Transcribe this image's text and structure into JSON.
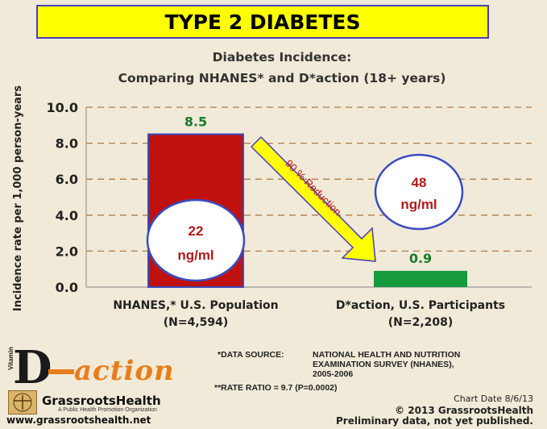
{
  "banner": {
    "title": "TYPE 2 DIABETES"
  },
  "colors": {
    "bar_nhanes": "#c0110f",
    "bar_daction": "#159a3c",
    "arrow": "#ffff00",
    "value_label": "#1a7a2a",
    "ngml_text": "#b11a1a"
  },
  "chart_data": {
    "type": "bar",
    "title_line1": "Diabetes Incidence:",
    "title_line2": "Comparing NHANES* and D*action (18+ years)",
    "ylabel": "Incidence rate per 1,000 person-years",
    "ylim": [
      0,
      10
    ],
    "yticks": [
      "0.0",
      "2.0",
      "4.0",
      "6.0",
      "8.0",
      "10.0"
    ],
    "categories": [
      {
        "line1": "NHANES,* U.S. Population",
        "line2": "(N=4,594)"
      },
      {
        "line1": "D*action, U.S. Participants",
        "line2": "(N=2,208)"
      }
    ],
    "values": [
      8.5,
      0.9
    ],
    "value_labels": [
      "8.5",
      "0.9"
    ],
    "annotations": {
      "nhanes_level": {
        "value": "22",
        "unit": "ng/ml"
      },
      "daction_level": {
        "value": "48",
        "unit": "ng/ml"
      },
      "reduction": "90 % Reduction"
    }
  },
  "footer": {
    "data_source_label": "*DATA SOURCE:",
    "data_source_text": "NATIONAL HEALTH AND NUTRITION\nEXAMINATION SURVEY (NHANES),\n2005-2006",
    "rate_ratio": "**RATE RATIO = 9.7 (P=0.0002)",
    "chart_date": "Chart Date 8/6/13",
    "copyright": "© 2013 GrassrootsHealth",
    "preliminary": "Preliminary data, not yet published."
  },
  "logos": {
    "vitamin": "Vitamin",
    "d_letter": "D",
    "action_text": "action",
    "org_name": "GrassrootsHealth",
    "org_tagline": "A Public Health Promotion Organization",
    "org_url": "www.grassrootshealth.net"
  }
}
